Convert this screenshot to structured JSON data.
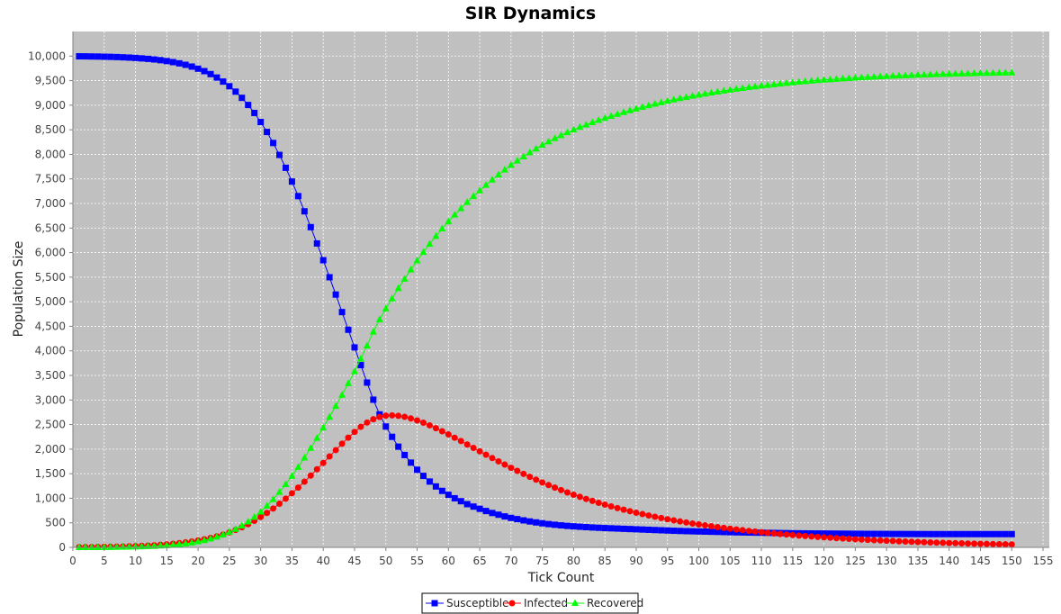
{
  "chart_data": {
    "type": "line",
    "title": "SIR Dynamics",
    "xlabel": "Tick Count",
    "ylabel": "Population Size",
    "xlim": [
      0,
      156
    ],
    "ylim": [
      0,
      10500
    ],
    "x_ticks": [
      0,
      5,
      10,
      15,
      20,
      25,
      30,
      35,
      40,
      45,
      50,
      55,
      60,
      65,
      70,
      75,
      80,
      85,
      90,
      95,
      100,
      105,
      110,
      115,
      120,
      125,
      130,
      135,
      140,
      145,
      150,
      155
    ],
    "y_ticks": [
      0,
      500,
      1000,
      1500,
      2000,
      2500,
      3000,
      3500,
      4000,
      4500,
      5000,
      5500,
      6000,
      6500,
      7000,
      7500,
      8000,
      8500,
      9000,
      9500,
      10000
    ],
    "x_tick_labels": [
      "0",
      "5",
      "10",
      "15",
      "20",
      "25",
      "30",
      "35",
      "40",
      "45",
      "50",
      "55",
      "60",
      "65",
      "70",
      "75",
      "80",
      "85",
      "90",
      "95",
      "100",
      "105",
      "110",
      "115",
      "120",
      "125",
      "130",
      "135",
      "140",
      "145",
      "150",
      "155"
    ],
    "y_tick_labels": [
      "0",
      "500",
      "1,000",
      "1,500",
      "2,000",
      "2,500",
      "3,000",
      "3,500",
      "4,000",
      "4,500",
      "5,000",
      "5,500",
      "6,000",
      "6,500",
      "7,000",
      "7,500",
      "8,000",
      "8,500",
      "9,000",
      "9,500",
      "10,000"
    ],
    "grid": true,
    "plot_background": "#c0c0c0",
    "legend_position": "bottom",
    "x_start": 1,
    "x_step": 1,
    "series": [
      {
        "name": "Susceptible",
        "color": "#0000ff",
        "marker": "square",
        "values": [
          9995,
          9994,
          9992,
          9990,
          9987,
          9984,
          9980,
          9975,
          9969,
          9962,
          9953,
          9943,
          9931,
          9916,
          9898,
          9877,
          9852,
          9822,
          9786,
          9743,
          9693,
          9633,
          9563,
          9481,
          9386,
          9276,
          9150,
          9005,
          8842,
          8658,
          8455,
          8231,
          7988,
          7726,
          7446,
          7150,
          6840,
          6518,
          6186,
          5845,
          5498,
          5146,
          4789,
          4430,
          4070,
          3710,
          3354,
          3006,
          2706,
          2460,
          2250,
          2050,
          1880,
          1725,
          1580,
          1455,
          1340,
          1240,
          1150,
          1070,
          1000,
          940,
          880,
          830,
          785,
          740,
          700,
          665,
          630,
          600,
          575,
          550,
          528,
          508,
          490,
          474,
          460,
          448,
          437,
          428,
          420,
          412,
          405,
          399,
          393,
          388,
          383,
          378,
          373,
          368,
          363,
          358,
          353,
          348,
          343,
          338,
          334,
          330,
          327,
          324,
          321,
          318,
          315,
          312,
          309,
          306,
          304,
          302,
          300,
          298,
          296,
          294,
          292,
          290,
          288,
          286,
          285,
          284,
          283,
          282,
          281,
          280,
          279,
          278,
          277,
          276,
          275,
          275,
          274,
          274,
          273,
          273,
          272,
          272,
          271,
          271,
          270,
          270,
          270,
          270,
          270,
          270,
          270,
          270,
          270,
          270,
          270,
          270,
          270,
          270
        ]
      },
      {
        "name": "Infected",
        "color": "#ff0000",
        "marker": "circle",
        "values": [
          5,
          6,
          8,
          9,
          11,
          13,
          15,
          18,
          22,
          26,
          31,
          37,
          44,
          52,
          62,
          73,
          86,
          102,
          120,
          141,
          165,
          193,
          225,
          262,
          305,
          354,
          410,
          472,
          541,
          618,
          701,
          791,
          888,
          991,
          1101,
          1216,
          1337,
          1461,
          1589,
          1719,
          1850,
          1980,
          2110,
          2233,
          2350,
          2454,
          2541,
          2608,
          2655,
          2681,
          2687,
          2678,
          2656,
          2624,
          2584,
          2537,
          2484,
          2426,
          2364,
          2299,
          2232,
          2164,
          2094,
          2024,
          1955,
          1886,
          1818,
          1751,
          1685,
          1620,
          1557,
          1496,
          1436,
          1378,
          1322,
          1268,
          1216,
          1166,
          1118,
          1072,
          1028,
          986,
          946,
          907,
          870,
          834,
          800,
          767,
          736,
          706,
          677,
          649,
          623,
          597,
          573,
          550,
          528,
          507,
          486,
          467,
          448,
          430,
          412,
          396,
          380,
          364,
          350,
          335,
          322,
          309,
          296,
          284,
          273,
          262,
          251,
          241,
          231,
          222,
          213,
          204,
          196,
          188,
          180,
          173,
          166,
          159,
          153,
          147,
          141,
          135,
          130,
          124,
          119,
          115,
          110,
          106,
          101,
          97,
          93,
          90,
          86,
          83,
          79,
          76,
          73,
          70,
          67,
          64,
          62,
          59
        ]
      },
      {
        "name": "Recovered",
        "color": "#00ff00",
        "marker": "triangle",
        "values": [
          0,
          0,
          0,
          1,
          2,
          3,
          5,
          7,
          9,
          12,
          16,
          20,
          25,
          32,
          40,
          50,
          62,
          76,
          94,
          116,
          142,
          174,
          212,
          257,
          309,
          370,
          440,
          523,
          617,
          724,
          844,
          978,
          1124,
          1283,
          1453,
          1634,
          1823,
          2021,
          2225,
          2436,
          2652,
          2874,
          3101,
          3337,
          3580,
          3836,
          4105,
          4386,
          4639,
          4859,
          5063,
          5272,
          5464,
          5651,
          5836,
          6008,
          6176,
          6334,
          6486,
          6631,
          6768,
          6896,
          7026,
          7146,
          7260,
          7374,
          7482,
          7584,
          7685,
          7780,
          7868,
          7954,
          8036,
          8114,
          8188,
          8258,
          8324,
          8386,
          8445,
          8500,
          8552,
          8602,
          8649,
          8694,
          8737,
          8778,
          8817,
          8855,
          8891,
          8926,
          8960,
          8993,
          9024,
          9055,
          9084,
          9112,
          9139,
          9163,
          9187,
          9209,
          9231,
          9252,
          9273,
          9292,
          9311,
          9330,
          9346,
          9363,
          9378,
          9393,
          9408,
          9422,
          9435,
          9448,
          9461,
          9473,
          9484,
          9495,
          9505,
          9514,
          9523,
          9532,
          9540,
          9548,
          9556,
          9563,
          9570,
          9577,
          9583,
          9589,
          9595,
          9600,
          9605,
          9610,
          9615,
          9619,
          9623,
          9627,
          9631,
          9634,
          9638,
          9641,
          9644,
          9647,
          9650,
          9652,
          9655,
          9657,
          9660,
          9662
        ]
      }
    ]
  }
}
